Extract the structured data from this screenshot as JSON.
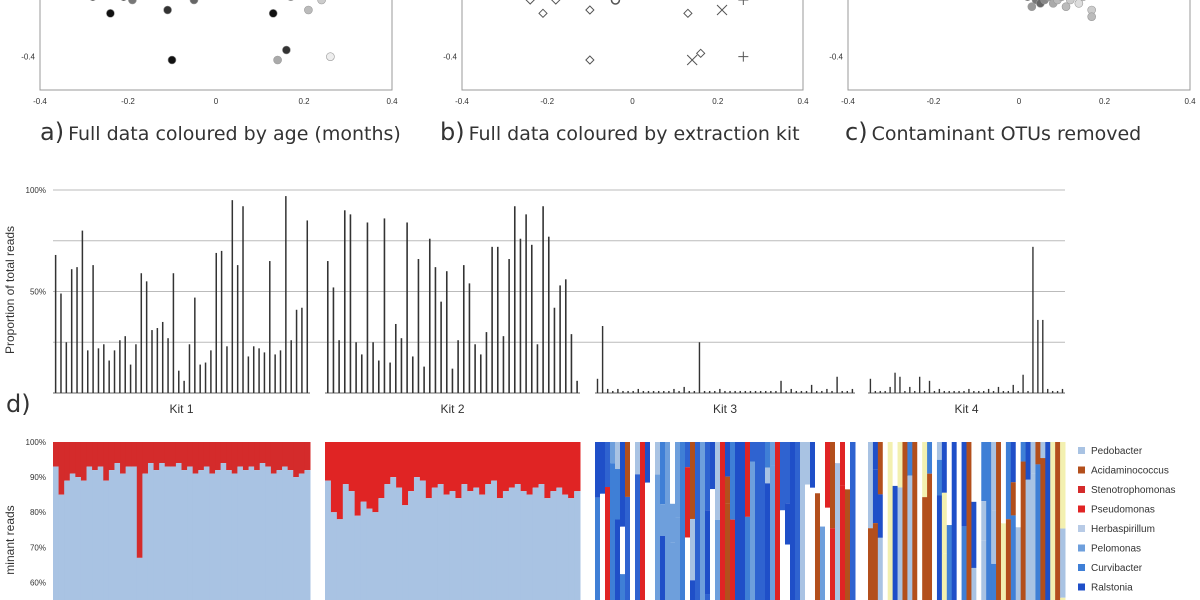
{
  "scatter_labels": {
    "a": {
      "letter": "a)",
      "text": "Full data coloured by age (months)"
    },
    "b": {
      "letter": "b)",
      "text": "Full data coloured by extraction kit"
    },
    "c": {
      "letter": "c)",
      "text": "Contaminant OTUs removed"
    }
  },
  "panel_d_letter": "d)",
  "ylabel_d": "Proportion of total reads",
  "ylabel_e": "minant reads",
  "kit_labels": [
    "Kit 1",
    "Kit 2",
    "Kit 3",
    "Kit 4"
  ],
  "taxa_legend": [
    {
      "name": "Pedobacter",
      "color": "#a9c3e3"
    },
    {
      "name": "Acidaminococcus",
      "color": "#b34f1c"
    },
    {
      "name": "Stenotrophomonas",
      "color": "#d42b2b"
    },
    {
      "name": "Pseudomonas",
      "color": "#e02424"
    },
    {
      "name": "Herbaspirillum",
      "color": "#b8cbe6"
    },
    {
      "name": "Pelomonas",
      "color": "#6e9fdc"
    },
    {
      "name": "Curvibacter",
      "color": "#3f7fd6"
    },
    {
      "name": "Ralstonia",
      "color": "#1f4fc8"
    }
  ],
  "chart_data": [
    {
      "type": "scatter",
      "panel": "a",
      "xlim": [
        -0.4,
        0.4
      ],
      "ylim": [
        -0.5,
        -0.2
      ],
      "xticks": [
        "-0.4",
        "-0.2",
        "0",
        "0.2",
        "0.4"
      ],
      "yticks": [
        "-0.4"
      ],
      "points": [
        {
          "x": -0.33,
          "y": -0.21,
          "shade": "#111"
        },
        {
          "x": -0.28,
          "y": -0.22,
          "shade": "#222"
        },
        {
          "x": -0.24,
          "y": -0.27,
          "shade": "#111"
        },
        {
          "x": -0.21,
          "y": -0.22,
          "shade": "#111"
        },
        {
          "x": -0.19,
          "y": -0.23,
          "shade": "#777"
        },
        {
          "x": -0.11,
          "y": -0.26,
          "shade": "#333"
        },
        {
          "x": -0.05,
          "y": -0.23,
          "shade": "#666"
        },
        {
          "x": -0.1,
          "y": -0.41,
          "shade": "#111"
        },
        {
          "x": 0.13,
          "y": -0.27,
          "shade": "#111"
        },
        {
          "x": 0.17,
          "y": -0.22,
          "shade": "#888"
        },
        {
          "x": 0.21,
          "y": -0.26,
          "shade": "#bbb"
        },
        {
          "x": 0.24,
          "y": -0.23,
          "shade": "#ccc"
        },
        {
          "x": 0.16,
          "y": -0.38,
          "shade": "#333"
        },
        {
          "x": 0.14,
          "y": -0.41,
          "shade": "#aaa"
        },
        {
          "x": 0.26,
          "y": -0.4,
          "shade": "#eee"
        }
      ]
    },
    {
      "type": "scatter",
      "panel": "b",
      "xlim": [
        -0.4,
        0.4
      ],
      "ylim": [
        -0.5,
        -0.2
      ],
      "xticks": [
        "-0.4",
        "-0.2",
        "0",
        "0.2",
        "0.4"
      ],
      "yticks": [
        "-0.4"
      ],
      "points": [
        {
          "x": -0.31,
          "y": -0.21,
          "marker": "diamond"
        },
        {
          "x": -0.24,
          "y": -0.23,
          "marker": "diamond"
        },
        {
          "x": -0.21,
          "y": -0.27,
          "marker": "diamond"
        },
        {
          "x": -0.18,
          "y": -0.23,
          "marker": "diamond"
        },
        {
          "x": -0.14,
          "y": -0.21,
          "marker": "diamond"
        },
        {
          "x": -0.1,
          "y": -0.26,
          "marker": "diamond"
        },
        {
          "x": -0.04,
          "y": -0.23,
          "marker": "circle"
        },
        {
          "x": -0.1,
          "y": -0.41,
          "marker": "diamond"
        },
        {
          "x": 0.07,
          "y": -0.21,
          "marker": "diamond"
        },
        {
          "x": 0.13,
          "y": -0.27,
          "marker": "diamond"
        },
        {
          "x": 0.16,
          "y": -0.39,
          "marker": "diamond"
        },
        {
          "x": 0.21,
          "y": -0.26,
          "marker": "x"
        },
        {
          "x": 0.26,
          "y": -0.23,
          "marker": "plus"
        },
        {
          "x": 0.29,
          "y": -0.21,
          "marker": "x"
        },
        {
          "x": 0.14,
          "y": -0.41,
          "marker": "x"
        },
        {
          "x": 0.26,
          "y": -0.4,
          "marker": "plus"
        }
      ]
    },
    {
      "type": "scatter",
      "panel": "c",
      "xlim": [
        -0.4,
        0.4
      ],
      "ylim": [
        -0.5,
        -0.2
      ],
      "xticks": [
        "-0.4",
        "-0.2",
        "0",
        "0.2",
        "0.4"
      ],
      "yticks": [
        "-0.4"
      ],
      "points": [
        {
          "x": -0.01,
          "y": -0.21,
          "shade": "#111"
        },
        {
          "x": 0.02,
          "y": -0.22,
          "shade": "#555"
        },
        {
          "x": 0.04,
          "y": -0.23,
          "shade": "#777"
        },
        {
          "x": 0.05,
          "y": -0.24,
          "shade": "#666"
        },
        {
          "x": 0.06,
          "y": -0.23,
          "shade": "#888"
        },
        {
          "x": 0.07,
          "y": -0.22,
          "shade": "#999"
        },
        {
          "x": 0.08,
          "y": -0.24,
          "shade": "#aaa"
        },
        {
          "x": 0.09,
          "y": -0.23,
          "shade": "#bbb"
        },
        {
          "x": 0.1,
          "y": -0.22,
          "shade": "#aaa"
        },
        {
          "x": 0.12,
          "y": -0.23,
          "shade": "#ccc"
        },
        {
          "x": 0.14,
          "y": -0.24,
          "shade": "#ddd"
        },
        {
          "x": 0.03,
          "y": -0.25,
          "shade": "#999"
        },
        {
          "x": 0.11,
          "y": -0.25,
          "shade": "#bbb"
        },
        {
          "x": 0.17,
          "y": -0.26,
          "shade": "#ccc"
        },
        {
          "x": 0.15,
          "y": -0.22,
          "shade": "#ddd"
        },
        {
          "x": 0.17,
          "y": -0.28,
          "shade": "#bbb"
        },
        {
          "x": 0.13,
          "y": -0.21,
          "shade": "#eee"
        },
        {
          "x": 0.06,
          "y": -0.21,
          "shade": "#444"
        }
      ]
    },
    {
      "type": "bar",
      "panel": "d",
      "ylim": [
        0,
        100
      ],
      "yticks": [
        "100%",
        "50%"
      ],
      "groups": [
        {
          "name": "Kit 1",
          "values": [
            68,
            49,
            25,
            61,
            62,
            80,
            21,
            63,
            22,
            24,
            16,
            21,
            26,
            28,
            14,
            24,
            59,
            55,
            31,
            32,
            35,
            27,
            59,
            11,
            6,
            24,
            47,
            14,
            15,
            21,
            69,
            70,
            23,
            95,
            63,
            92,
            18,
            23,
            22,
            20,
            65,
            19,
            21,
            97,
            26,
            41,
            42,
            85
          ]
        },
        {
          "name": "Kit 2",
          "values": [
            65,
            52,
            26,
            90,
            88,
            25,
            19,
            84,
            25,
            16,
            86,
            15,
            34,
            27,
            84,
            18,
            66,
            13,
            76,
            62,
            45,
            60,
            12,
            26,
            63,
            54,
            24,
            19,
            30,
            72,
            72,
            28,
            66,
            92,
            76,
            88,
            73,
            24,
            92,
            77,
            42,
            53,
            56,
            29,
            6
          ]
        },
        {
          "name": "Kit 3",
          "values": [
            7,
            33,
            2,
            1,
            2,
            1,
            1,
            1,
            2,
            1,
            1,
            1,
            1,
            1,
            1,
            2,
            1,
            3,
            1,
            1,
            25,
            1,
            1,
            1,
            2,
            1,
            1,
            1,
            1,
            1,
            1,
            1,
            1,
            1,
            1,
            1,
            6,
            1,
            2,
            1,
            1,
            1,
            4,
            1,
            1,
            2,
            1,
            8,
            1,
            1,
            2
          ]
        },
        {
          "name": "Kit 4",
          "values": [
            7,
            1,
            1,
            1,
            3,
            10,
            8,
            1,
            3,
            1,
            8,
            1,
            6,
            1,
            2,
            1,
            1,
            1,
            1,
            1,
            2,
            1,
            1,
            1,
            2,
            1,
            3,
            1,
            1,
            4,
            1,
            9,
            1,
            72,
            36,
            36,
            2,
            1,
            1,
            2
          ]
        }
      ]
    },
    {
      "type": "bar",
      "panel": "e",
      "stacked": true,
      "ylim": [
        55,
        100
      ],
      "yticks": [
        "100%",
        "90%",
        "80%",
        "70%",
        "60%"
      ],
      "groups": [
        {
          "name": "Kit 1",
          "base": "Pedobacter",
          "top": "Stenotrophomonas",
          "base_values": [
            93,
            85,
            89,
            91,
            90,
            89,
            93,
            92,
            93,
            89,
            92,
            94,
            91,
            93,
            93,
            67,
            91,
            94,
            92,
            94,
            93,
            93,
            94,
            92,
            93,
            91,
            92,
            93,
            91,
            92,
            94,
            92,
            91,
            93,
            92,
            93,
            92,
            94,
            93,
            91,
            92,
            93,
            92,
            90,
            91,
            92
          ]
        },
        {
          "name": "Kit 2",
          "base": "Pedobacter",
          "top": "Pseudomonas",
          "base_values": [
            89,
            80,
            78,
            88,
            86,
            79,
            83,
            81,
            80,
            84,
            88,
            90,
            87,
            82,
            86,
            90,
            89,
            84,
            87,
            88,
            85,
            86,
            84,
            88,
            86,
            87,
            85,
            88,
            89,
            84,
            86,
            87,
            88,
            86,
            85,
            87,
            88,
            84,
            86,
            87,
            85,
            84,
            86
          ]
        },
        {
          "name": "Kit 3",
          "mixed": true,
          "palette": [
            "#1f4fc8",
            "#3f7fd6",
            "#2f63d0",
            "#6e9fdc",
            "#a9c3e3",
            "#b34f1c",
            "#e02424",
            "#ffffff"
          ],
          "columns": 52
        },
        {
          "name": "Kit 4",
          "mixed": true,
          "palette": [
            "#b34f1c",
            "#1f4fc8",
            "#3f7fd6",
            "#a9c3e3",
            "#ffffff",
            "#f3f0b0"
          ],
          "columns": 40
        }
      ]
    }
  ]
}
